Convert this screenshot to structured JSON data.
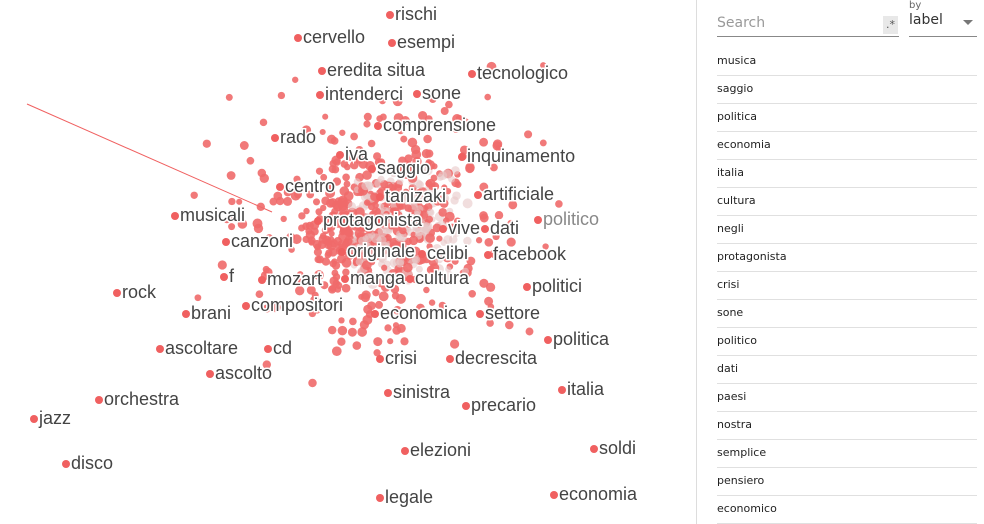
{
  "search": {
    "placeholder": "Search",
    "regex": ".*",
    "by": "by",
    "field": "label"
  },
  "points": [
    "rischi",
    "cervello",
    "esempi",
    "eredita situa",
    "tecnologico",
    "intenderci",
    "sone",
    "comprensione",
    "rado",
    "iva",
    "inquinamento",
    "saggio",
    "centro",
    "tanizaki",
    "artificiale",
    "musicali",
    "protagonista",
    "vive",
    "dati",
    "politico",
    "canzoni",
    "originale",
    "celibi",
    "facebook",
    "f",
    "mozart",
    "manga",
    "cultura",
    "politici",
    "rock",
    "compositori",
    "brani",
    "economica",
    "settore",
    "politica",
    "ascoltare",
    "cd",
    "crisi",
    "decrescita",
    "ascolto",
    "italia",
    "sinistra",
    "orchestra",
    "precario",
    "jazz",
    "elezioni",
    "soldi",
    "disco",
    "legale",
    "economia"
  ],
  "list": [
    "musica",
    "saggio",
    "politica",
    "economia",
    "italia",
    "cultura",
    "negli",
    "protagonista",
    "crisi",
    "sone",
    "politico",
    "dati",
    "paesi",
    "nostra",
    "semplice",
    "pensiero",
    "economico"
  ]
}
